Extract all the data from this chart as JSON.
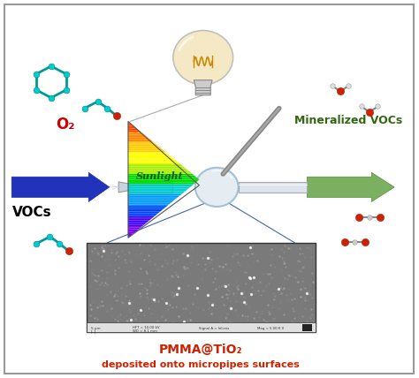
{
  "bg_color": "#ffffff",
  "border_color": "#999999",
  "title_text": "PMMA@TiO₂",
  "subtitle_text": "deposited onto micropipes surfaces",
  "label_vocs": "VOCs",
  "label_o2": "O₂",
  "label_mineralized": "Mineralized VOCs",
  "label_sunlight": "Sunlight",
  "arrow_left_color": "#2233bb",
  "arrow_right_color": "#7ab060",
  "title_color": "#cc2200",
  "sunlight_text_color": "#226622",
  "o2_color": "#cc0000",
  "spectrum_colors": [
    "#7700ee",
    "#4400ff",
    "#0044ff",
    "#0099ff",
    "#00cccc",
    "#00dd00",
    "#aaee00",
    "#ffff00",
    "#ffcc00",
    "#ff8800",
    "#ff4400",
    "#ff0000"
  ],
  "tube_color": "#dde4ee",
  "tube_outline": "#aaaaaa",
  "sem_bg": "#7a7a7a",
  "lens_color": "#dde8f0",
  "rod_color": "#888888"
}
